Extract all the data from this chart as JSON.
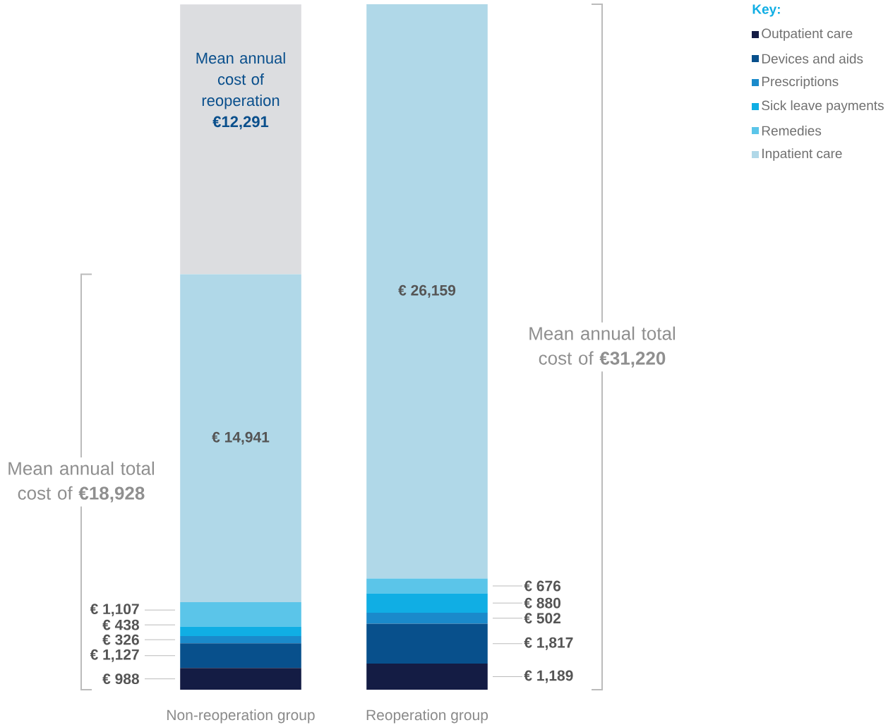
{
  "chart_data": {
    "type": "bar",
    "stacked": true,
    "legend_title": "Key:",
    "legend": "top right",
    "categories": [
      "Non-reoperation group",
      "Reoperation group"
    ],
    "series": [
      {
        "name": "Outpatient care",
        "color": "#141c44",
        "values": [
          988,
          1189
        ],
        "value_labels": [
          "€ 988",
          "€ 1,189"
        ]
      },
      {
        "name": "Devices and aids",
        "color": "#08508c",
        "values": [
          1127,
          1817
        ],
        "value_labels": [
          "€ 1,127",
          "€ 1,817"
        ]
      },
      {
        "name": "Prescriptions",
        "color": "#1a8acb",
        "values": [
          326,
          502
        ],
        "value_labels": [
          "€ 326",
          "€ 502"
        ]
      },
      {
        "name": "Sick leave payments",
        "color": "#10aee4",
        "values": [
          438,
          880
        ],
        "value_labels": [
          "€ 438",
          "€ 880"
        ]
      },
      {
        "name": "Remedies",
        "color": "#5bc5e9",
        "values": [
          1107,
          676
        ],
        "value_labels": [
          "€ 1,107",
          "€ 676"
        ]
      },
      {
        "name": "Inpatient care",
        "color": "#b0d8e8",
        "values": [
          14941,
          26159
        ],
        "value_labels": [
          "€ 14,941",
          "€ 26,159"
        ]
      },
      {
        "color": "#dcdde0",
        "values": [
          12291,
          null
        ],
        "value_labels": [
          "Mean annual cost of reoperation **€12,291**",
          null
        ]
      }
    ],
    "annotations": [
      "Mean annual total cost of **€18,928**",
      "Mean annual total cost of **€31,220**"
    ]
  }
}
